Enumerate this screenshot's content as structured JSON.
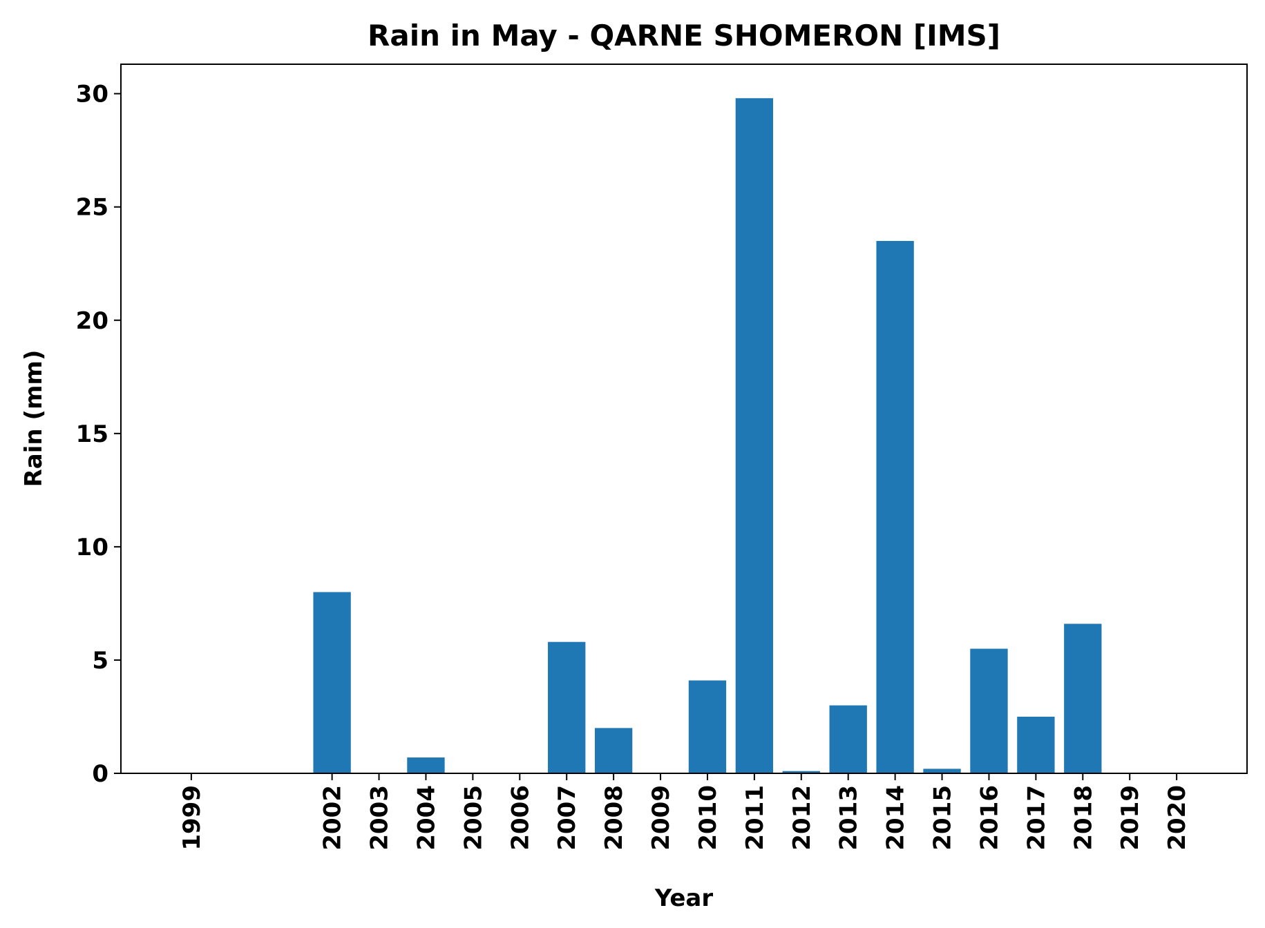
{
  "chart_data": {
    "type": "bar",
    "title": "Rain in May - QARNE SHOMERON [IMS]",
    "xlabel": "Year",
    "ylabel": "Rain (mm)",
    "x": [
      1999,
      2002,
      2003,
      2004,
      2005,
      2006,
      2007,
      2008,
      2009,
      2010,
      2011,
      2012,
      2013,
      2014,
      2015,
      2016,
      2017,
      2018,
      2019,
      2020
    ],
    "categories": [
      "1999",
      "2002",
      "2003",
      "2004",
      "2005",
      "2006",
      "2007",
      "2008",
      "2009",
      "2010",
      "2011",
      "2012",
      "2013",
      "2014",
      "2015",
      "2016",
      "2017",
      "2018",
      "2019",
      "2020"
    ],
    "values": [
      0,
      8.0,
      0,
      0.7,
      0,
      0,
      5.8,
      2.0,
      0,
      4.1,
      29.8,
      0.1,
      3.0,
      23.5,
      0.2,
      5.5,
      2.5,
      6.6,
      0,
      0
    ],
    "xlim": [
      1997.5,
      2021.5
    ],
    "ylim": [
      0,
      31.3
    ],
    "yticks": [
      0,
      5,
      10,
      15,
      20,
      25,
      30
    ],
    "grid": false,
    "bar_color": "#1f77b4"
  }
}
